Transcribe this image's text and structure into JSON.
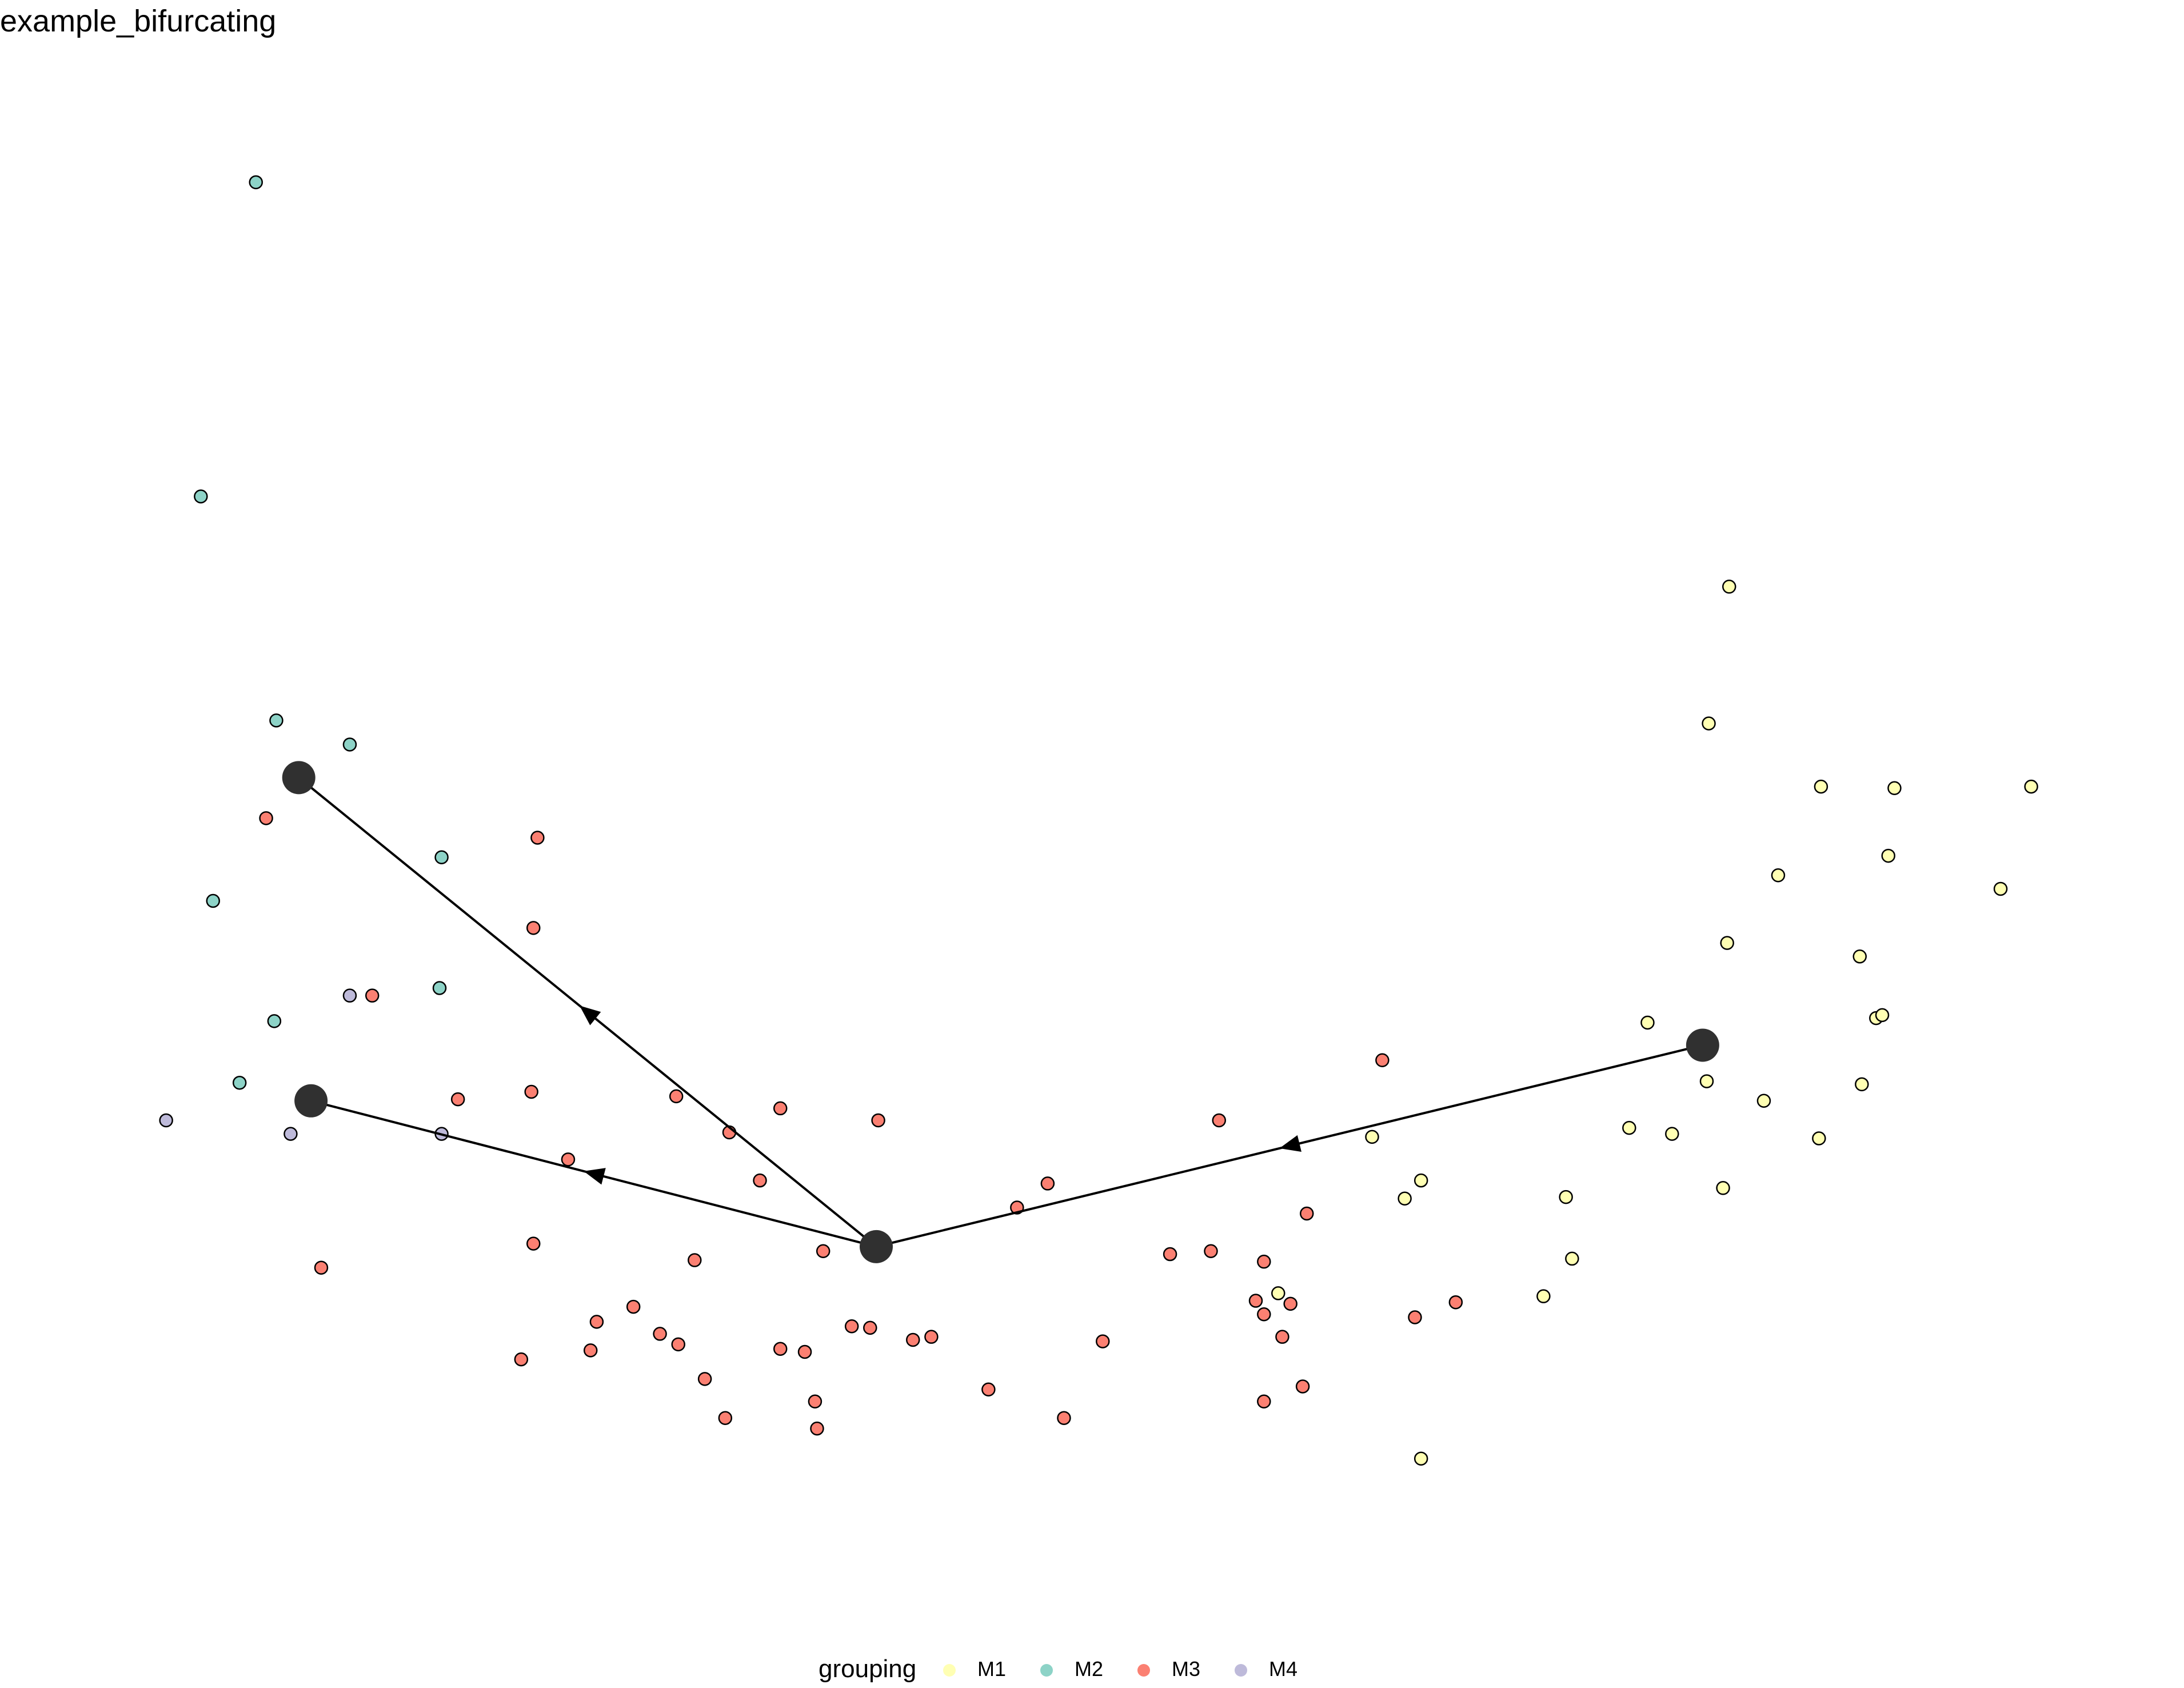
{
  "title": "example_bifurcating",
  "legend": {
    "title": "grouping",
    "items": [
      {
        "label": "M1",
        "color": "#FFFFB3"
      },
      {
        "label": "M2",
        "color": "#8DD3C7"
      },
      {
        "label": "M3",
        "color": "#FB8072"
      },
      {
        "label": "M4",
        "color": "#BEBADA"
      }
    ]
  },
  "chart_data": {
    "type": "scatter",
    "title": "example_bifurcating",
    "xlabel": "",
    "ylabel": "",
    "axes_visible": false,
    "grid": false,
    "xlim": [
      0,
      100
    ],
    "ylim": [
      0,
      100
    ],
    "legend_position": "bottom",
    "colors": {
      "M1": "#FFFFB3",
      "M2": "#8DD3C7",
      "M3": "#FB8072",
      "M4": "#BEBADA"
    },
    "series": [
      {
        "name": "M1",
        "points": [
          [
            81.1,
            66.3
          ],
          [
            80.1,
            57.2
          ],
          [
            85.6,
            53.0
          ],
          [
            89.2,
            52.9
          ],
          [
            95.9,
            53.0
          ],
          [
            88.9,
            48.4
          ],
          [
            83.5,
            47.1
          ],
          [
            94.4,
            46.2
          ],
          [
            81.0,
            42.6
          ],
          [
            87.5,
            41.7
          ],
          [
            88.3,
            37.6
          ],
          [
            88.6,
            37.8
          ],
          [
            77.1,
            37.3
          ],
          [
            80.0,
            33.4
          ],
          [
            82.8,
            32.1
          ],
          [
            87.6,
            33.2
          ],
          [
            76.2,
            30.3
          ],
          [
            78.3,
            29.9
          ],
          [
            85.5,
            29.6
          ],
          [
            63.6,
            29.7
          ],
          [
            66.0,
            26.8
          ],
          [
            65.2,
            25.6
          ],
          [
            73.1,
            25.7
          ],
          [
            80.8,
            26.3
          ],
          [
            73.4,
            21.6
          ],
          [
            72.0,
            19.1
          ],
          [
            59.0,
            19.3
          ],
          [
            66.0,
            8.3
          ]
        ]
      },
      {
        "name": "M2",
        "points": [
          [
            8.9,
            93.2
          ],
          [
            6.2,
            72.3
          ],
          [
            9.9,
            57.4
          ],
          [
            13.5,
            55.8
          ],
          [
            18.0,
            48.3
          ],
          [
            6.8,
            45.4
          ],
          [
            17.9,
            39.6
          ],
          [
            9.8,
            37.4
          ],
          [
            8.1,
            33.3
          ]
        ]
      },
      {
        "name": "M3",
        "points": [
          [
            9.4,
            50.9
          ],
          [
            22.7,
            49.6
          ],
          [
            22.5,
            43.6
          ],
          [
            14.6,
            39.1
          ],
          [
            18.8,
            32.2
          ],
          [
            22.4,
            32.7
          ],
          [
            24.2,
            28.2
          ],
          [
            39.4,
            30.8
          ],
          [
            29.5,
            32.4
          ],
          [
            32.1,
            30.0
          ],
          [
            34.6,
            31.6
          ],
          [
            33.6,
            26.8
          ],
          [
            47.7,
            26.6
          ],
          [
            46.2,
            25.0
          ],
          [
            64.1,
            34.8
          ],
          [
            56.1,
            30.8
          ],
          [
            60.4,
            24.6
          ],
          [
            22.5,
            22.6
          ],
          [
            30.4,
            21.5
          ],
          [
            36.7,
            22.1
          ],
          [
            12.1,
            21.0
          ],
          [
            53.7,
            21.9
          ],
          [
            55.7,
            22.1
          ],
          [
            58.3,
            21.4
          ],
          [
            57.9,
            18.8
          ],
          [
            59.6,
            18.6
          ],
          [
            58.3,
            17.9
          ],
          [
            65.7,
            17.7
          ],
          [
            67.7,
            18.7
          ],
          [
            27.4,
            18.4
          ],
          [
            25.6,
            17.4
          ],
          [
            28.7,
            16.6
          ],
          [
            29.6,
            15.9
          ],
          [
            25.3,
            15.5
          ],
          [
            38.1,
            17.1
          ],
          [
            39.0,
            17.0
          ],
          [
            41.1,
            16.2
          ],
          [
            42.0,
            16.4
          ],
          [
            50.4,
            16.1
          ],
          [
            59.2,
            16.4
          ],
          [
            21.9,
            14.9
          ],
          [
            34.6,
            15.6
          ],
          [
            35.8,
            15.4
          ],
          [
            30.9,
            13.6
          ],
          [
            44.8,
            12.9
          ],
          [
            60.2,
            13.1
          ],
          [
            36.3,
            12.1
          ],
          [
            58.3,
            12.1
          ],
          [
            31.9,
            11.0
          ],
          [
            48.5,
            11.0
          ],
          [
            36.4,
            10.3
          ]
        ]
      },
      {
        "name": "M4",
        "points": [
          [
            13.5,
            39.1
          ],
          [
            4.5,
            30.8
          ],
          [
            10.6,
            29.9
          ],
          [
            18.0,
            29.9
          ]
        ]
      }
    ],
    "trajectory": {
      "milestones": [
        {
          "id": "M1",
          "x": 79.8,
          "y": 35.8
        },
        {
          "id": "M2",
          "x": 11.0,
          "y": 53.6
        },
        {
          "id": "M3",
          "x": 39.3,
          "y": 22.4
        },
        {
          "id": "M4",
          "x": 11.6,
          "y": 32.1
        }
      ],
      "edges": [
        {
          "from": "M1",
          "to": "M3"
        },
        {
          "from": "M3",
          "to": "M2"
        },
        {
          "from": "M3",
          "to": "M4"
        }
      ]
    }
  }
}
